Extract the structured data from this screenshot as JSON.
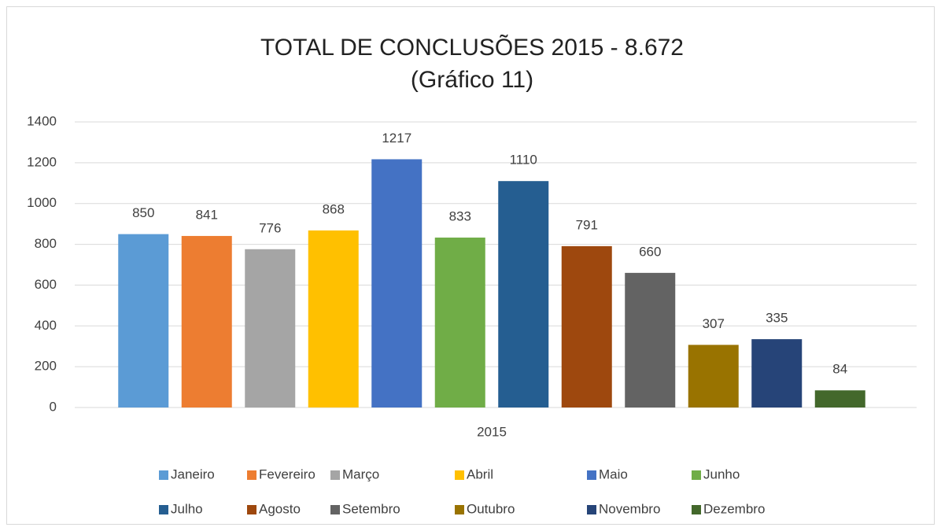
{
  "chart_data": {
    "type": "bar",
    "title": "TOTAL DE CONCLUSÕES 2015 - 8.672",
    "subtitle": "(Gráfico 11)",
    "categories": [
      "2015"
    ],
    "series": [
      {
        "name": "Janeiro",
        "color": "#5b9bd5",
        "values": [
          850
        ]
      },
      {
        "name": "Fevereiro",
        "color": "#ed7d31",
        "values": [
          841
        ]
      },
      {
        "name": "Março",
        "color": "#a5a5a5",
        "values": [
          776
        ]
      },
      {
        "name": "Abril",
        "color": "#ffc000",
        "values": [
          868
        ]
      },
      {
        "name": "Maio",
        "color": "#4472c4",
        "values": [
          1217
        ]
      },
      {
        "name": "Junho",
        "color": "#70ad47",
        "values": [
          833
        ]
      },
      {
        "name": "Julho",
        "color": "#255e91",
        "values": [
          1110
        ]
      },
      {
        "name": "Agosto",
        "color": "#9e480e",
        "values": [
          791
        ]
      },
      {
        "name": "Setembro",
        "color": "#636363",
        "values": [
          660
        ]
      },
      {
        "name": "Outubro",
        "color": "#997300",
        "values": [
          307
        ]
      },
      {
        "name": "Novembro",
        "color": "#264478",
        "values": [
          335
        ]
      },
      {
        "name": "Dezembro",
        "color": "#43682b",
        "values": [
          84
        ]
      }
    ],
    "ylim": [
      0,
      1400
    ],
    "yticks": [
      0,
      200,
      400,
      600,
      800,
      1000,
      1200,
      1400
    ],
    "grid": true,
    "legend": "bottom"
  }
}
